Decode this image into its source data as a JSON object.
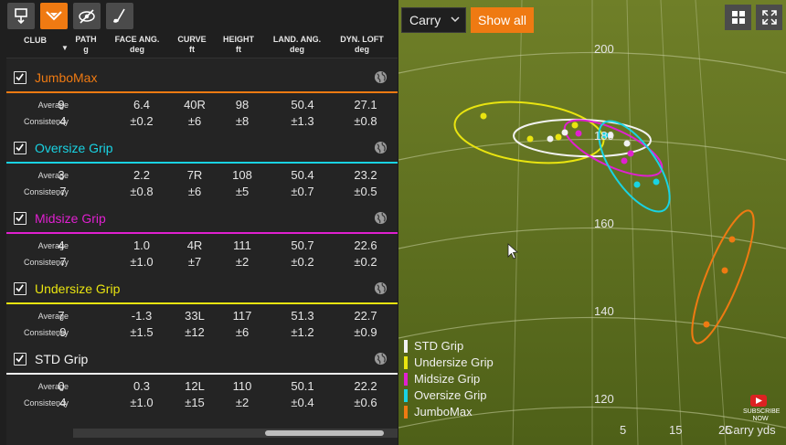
{
  "toolbar": {
    "icons": [
      "download-icon",
      "dispersion-icon",
      "hide-icon",
      "club-icon"
    ]
  },
  "columns": [
    {
      "title": "CLUB",
      "unit": ""
    },
    {
      "title": "PATH",
      "unit": "g"
    },
    {
      "title": "FACE ANG.",
      "unit": "deg"
    },
    {
      "title": "CURVE",
      "unit": "ft"
    },
    {
      "title": "HEIGHT",
      "unit": "ft"
    },
    {
      "title": "LAND. ANG.",
      "unit": "deg"
    },
    {
      "title": "DYN. LOFT",
      "unit": "deg"
    }
  ],
  "row_labels": {
    "average": "Average",
    "consistency": "Consistency"
  },
  "clubs": [
    {
      "name": "JumboMax",
      "color": "#ef7a12",
      "checked": true,
      "average": [
        "9",
        "6.4",
        "40R",
        "98",
        "50.4",
        "27.1"
      ],
      "consistency": [
        ".4",
        "±0.2",
        "±6",
        "±8",
        "±1.3",
        "±0.8"
      ]
    },
    {
      "name": "Oversize Grip",
      "color": "#19d3e3",
      "checked": true,
      "average": [
        "3",
        "2.2",
        "7R",
        "108",
        "50.4",
        "23.2"
      ],
      "consistency": [
        ".7",
        "±0.8",
        "±6",
        "±5",
        "±0.7",
        "±0.5"
      ]
    },
    {
      "name": "Midsize Grip",
      "color": "#e020d0",
      "checked": true,
      "average": [
        "4",
        "1.0",
        "4R",
        "111",
        "50.7",
        "22.6"
      ],
      "consistency": [
        ".7",
        "±1.0",
        "±7",
        "±2",
        "±0.2",
        "±0.2"
      ]
    },
    {
      "name": "Undersize Grip",
      "color": "#e9e410",
      "checked": true,
      "average": [
        "7",
        "-1.3",
        "33L",
        "117",
        "51.3",
        "22.7"
      ],
      "consistency": [
        ".9",
        "±1.5",
        "±12",
        "±6",
        "±1.2",
        "±0.9"
      ]
    },
    {
      "name": "STD Grip",
      "color": "#f2f2f2",
      "checked": true,
      "average": [
        "0",
        "0.3",
        "12L",
        "110",
        "50.1",
        "22.2"
      ],
      "consistency": [
        ".4",
        "±1.0",
        "±15",
        "±2",
        "±0.4",
        "±0.6"
      ]
    }
  ],
  "controls": {
    "carry_select": "Carry",
    "show_all": "Show all"
  },
  "plot": {
    "y_ticks": [
      "200",
      "180",
      "160",
      "140",
      "120"
    ],
    "x_ticks": [
      "5",
      "15",
      "25"
    ],
    "axis_unit": "Carry yds",
    "legend": [
      {
        "name": "STD Grip",
        "color": "#f2f2f2"
      },
      {
        "name": "Undersize Grip",
        "color": "#e9e410"
      },
      {
        "name": "Midsize Grip",
        "color": "#e020d0"
      },
      {
        "name": "Oversize Grip",
        "color": "#19d3e3"
      },
      {
        "name": "JumboMax",
        "color": "#ef7a12"
      }
    ]
  },
  "overlay": {
    "subscribe": "SUBSCRIBE NOW"
  }
}
